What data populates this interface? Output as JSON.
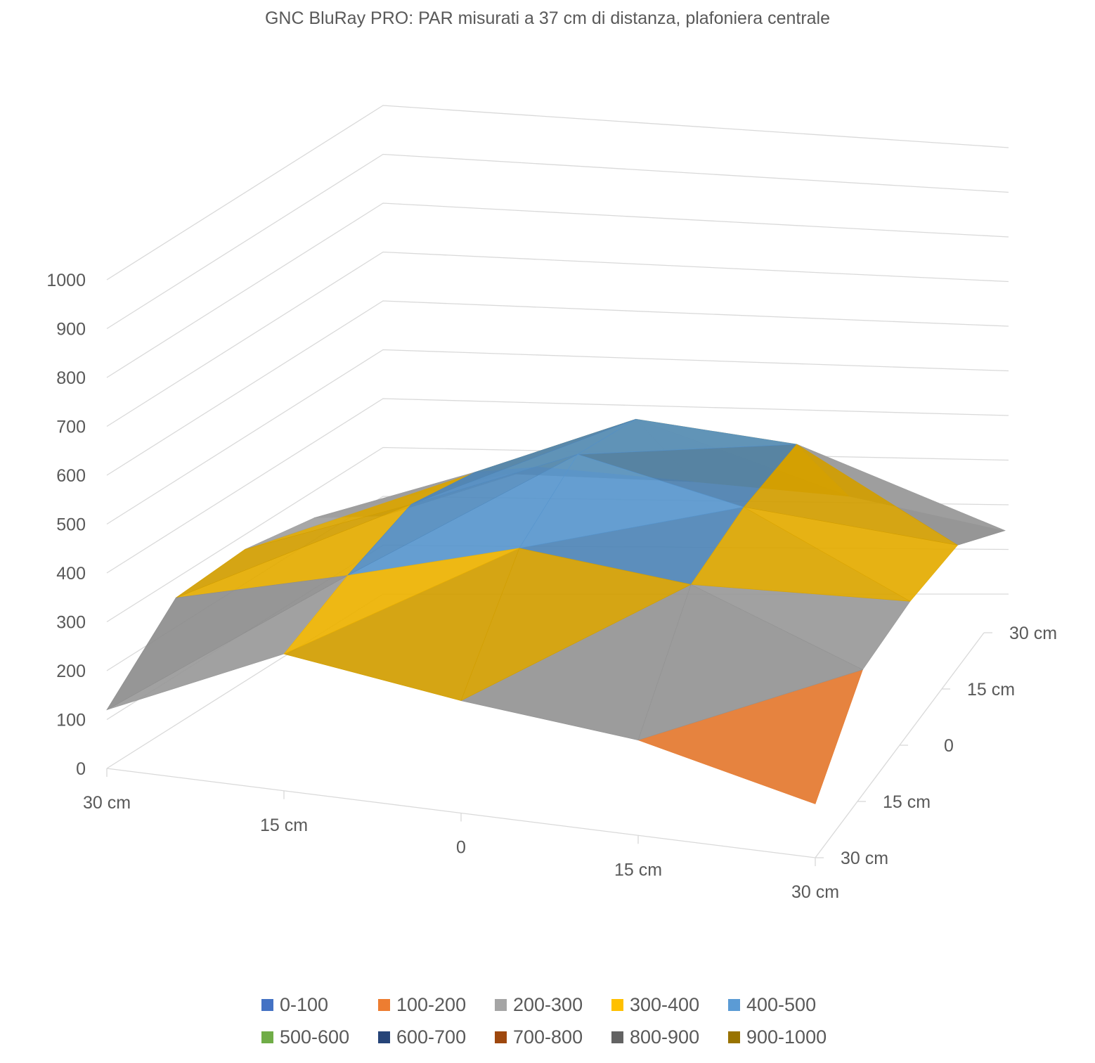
{
  "chart_data": {
    "type": "surface",
    "title": "GNC BluRay PRO: PAR misurati a 37 cm di distanza, plafoniera centrale",
    "x_categories": [
      "30 cm",
      "15 cm",
      "0",
      "15 cm",
      "30 cm"
    ],
    "y_categories": [
      "30 cm",
      "15 cm",
      "0",
      "15 cm",
      "30 cm"
    ],
    "z_ticks": [
      "0",
      "100",
      "200",
      "300",
      "400",
      "500",
      "600",
      "700",
      "800",
      "900",
      "1000"
    ],
    "zlim": [
      0,
      1000
    ],
    "grid": true,
    "legend_position": "bottom",
    "values": [
      [
        120,
        280,
        230,
        195,
        110
      ],
      [
        260,
        340,
        430,
        390,
        250
      ],
      [
        270,
        385,
        510,
        425,
        255
      ],
      [
        245,
        350,
        470,
        430,
        235
      ],
      [
        160,
        260,
        230,
        200,
        130
      ]
    ],
    "legend": [
      {
        "label": "0-100",
        "color": "#4472C4"
      },
      {
        "label": "100-200",
        "color": "#ED7D31"
      },
      {
        "label": "200-300",
        "color": "#A5A5A5"
      },
      {
        "label": "300-400",
        "color": "#FFC000"
      },
      {
        "label": "400-500",
        "color": "#5B9BD5"
      },
      {
        "label": "500-600",
        "color": "#70AD47"
      },
      {
        "label": "600-700",
        "color": "#264478"
      },
      {
        "label": "700-800",
        "color": "#9E480E"
      },
      {
        "label": "800-900",
        "color": "#636363"
      },
      {
        "label": "900-1000",
        "color": "#997300"
      }
    ]
  }
}
